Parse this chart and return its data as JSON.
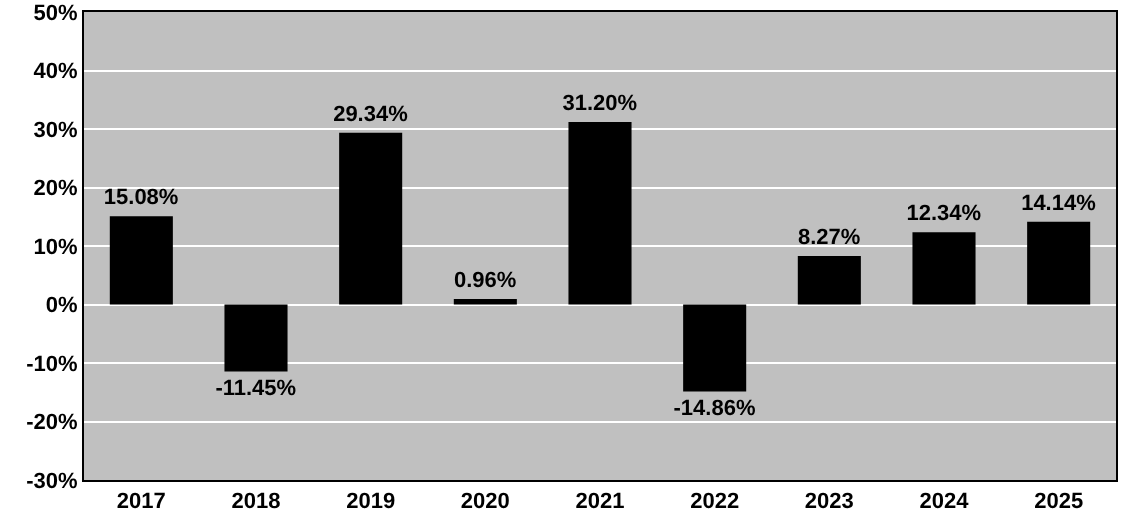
{
  "chart_data": {
    "type": "bar",
    "categories": [
      "2017",
      "2018",
      "2019",
      "2020",
      "2021",
      "2022",
      "2023",
      "2024",
      "2025"
    ],
    "values": [
      15.08,
      -11.45,
      29.34,
      0.96,
      31.2,
      -14.86,
      8.27,
      12.34,
      14.14
    ],
    "value_labels": [
      "15.08%",
      "-11.45%",
      "29.34%",
      "0.96%",
      "31.20%",
      "-14.86%",
      "8.27%",
      "12.34%",
      "14.14%"
    ],
    "color": "#000000",
    "ylim": [
      -30,
      50
    ],
    "yticks": [
      {
        "value": -30,
        "label": "-30%"
      },
      {
        "value": -20,
        "label": "-20%"
      },
      {
        "value": -10,
        "label": "-10%"
      },
      {
        "value": 0,
        "label": "0%"
      },
      {
        "value": 10,
        "label": "10%"
      },
      {
        "value": 20,
        "label": "20%"
      },
      {
        "value": 30,
        "label": "30%"
      },
      {
        "value": 40,
        "label": "40%"
      },
      {
        "value": 50,
        "label": "50%"
      }
    ],
    "grid": "y"
  }
}
